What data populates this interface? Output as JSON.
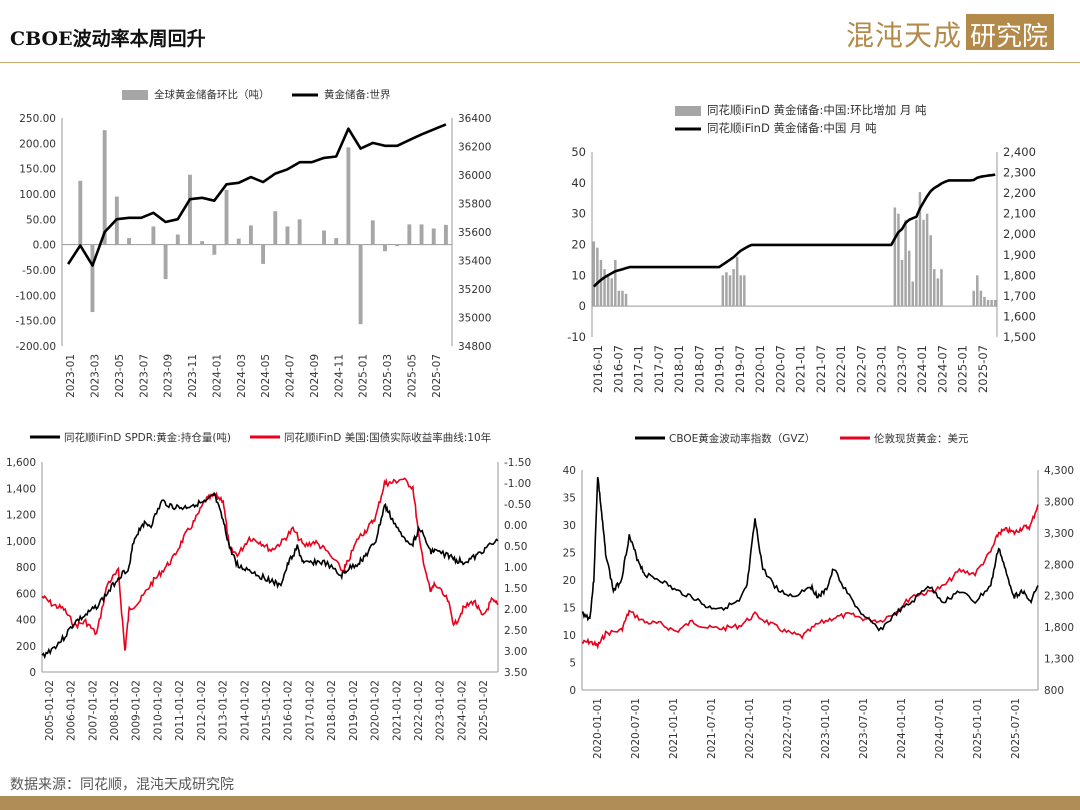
{
  "header": {
    "title": "CBOE波动率本周回升",
    "logo_text": "混沌天成",
    "logo_box_text": "研究院"
  },
  "footer": {
    "source": "数据来源：同花顺，混沌天成研究院"
  },
  "colors": {
    "bar": "#a6a6a6",
    "line_black": "#000000",
    "line_red": "#e8001c",
    "accent": "#b08d57"
  },
  "chart_data": [
    {
      "id": "c1",
      "type": "bar+line",
      "legend": {
        "bar": "全球黄金储备环比（吨）",
        "line": "黄金储备:世界"
      },
      "y_left": {
        "ticks": [
          "250.00",
          "200.00",
          "150.00",
          "100.00",
          "50.00",
          "0.00",
          "-50.00",
          "-100.00",
          "-150.00",
          "-200.00"
        ],
        "range": [
          -200,
          250
        ]
      },
      "y_right": {
        "ticks": [
          "36400",
          "36200",
          "36000",
          "35800",
          "35600",
          "35400",
          "35200",
          "35000",
          "34800"
        ],
        "range": [
          34800,
          36400
        ]
      },
      "x_ticks": [
        "2023-01",
        "2023-03",
        "2023-05",
        "2023-07",
        "2023-09",
        "2023-11",
        "2024-01",
        "2024-03",
        "2024-05",
        "2024-07",
        "2024-09",
        "2024-11",
        "2025-01",
        "2025-03",
        "2025-05",
        "2025-07"
      ],
      "bars": [
        0,
        126,
        -133,
        226,
        95,
        13,
        0,
        36,
        -68,
        20,
        138,
        7,
        -20,
        108,
        12,
        38,
        -38,
        66,
        36,
        50,
        0,
        28,
        13,
        192,
        -157,
        48,
        -13,
        -3,
        40,
        40,
        32,
        39
      ],
      "line": [
        35375,
        35505,
        35365,
        35600,
        35690,
        35700,
        35700,
        35735,
        35670,
        35690,
        35830,
        35840,
        35820,
        35935,
        35945,
        35985,
        35950,
        36010,
        36040,
        36090,
        36090,
        36120,
        36130,
        36325,
        36185,
        36225,
        36205,
        36205,
        36245,
        36285,
        36320,
        36355
      ]
    },
    {
      "id": "c2",
      "type": "bar+line",
      "legend": {
        "bar": "同花顺iFinD 黄金储备:中国:环比增加 月 吨",
        "line": "同花顺iFinD 黄金储备:中国 月 吨"
      },
      "y_left": {
        "ticks": [
          "50",
          "40",
          "30",
          "20",
          "10",
          "0",
          "-10"
        ],
        "range": [
          -10,
          50
        ]
      },
      "y_right": {
        "ticks": [
          "2,400",
          "2,300",
          "2,200",
          "2,100",
          "2,000",
          "1,900",
          "1,800",
          "1,700",
          "1,600",
          "1,500"
        ],
        "range": [
          1500,
          2400
        ]
      },
      "x_ticks": [
        "2016-01",
        "2016-07",
        "2017-01",
        "2017-07",
        "2018-01",
        "2018-07",
        "2019-01",
        "2019-07",
        "2020-01",
        "2020-07",
        "2021-01",
        "2021-07",
        "2022-01",
        "2022-07",
        "2023-01",
        "2023-07",
        "2024-01",
        "2024-07",
        "2025-01",
        "2025-07"
      ],
      "bars": [
        21,
        19,
        15,
        12,
        10,
        9,
        15,
        5,
        5,
        4,
        0,
        0,
        0,
        0,
        0,
        0,
        0,
        0,
        0,
        0,
        0,
        0,
        0,
        0,
        0,
        0,
        0,
        0,
        0,
        0,
        0,
        0,
        0,
        0,
        0,
        0,
        10,
        11,
        10,
        12,
        16,
        10,
        10,
        0,
        0,
        0,
        0,
        0,
        0,
        0,
        0,
        0,
        0,
        0,
        0,
        0,
        0,
        0,
        0,
        0,
        0,
        0,
        0,
        0,
        0,
        0,
        0,
        0,
        0,
        0,
        0,
        0,
        0,
        0,
        0,
        0,
        0,
        0,
        0,
        0,
        0,
        0,
        0,
        0,
        32,
        30,
        15,
        28,
        18,
        8,
        28,
        37,
        28,
        30,
        23,
        12,
        9,
        12,
        0,
        0,
        0,
        0,
        0,
        0,
        0,
        0,
        5,
        10,
        5,
        3,
        2,
        2,
        2
      ],
      "line": [
        1745,
        1762,
        1778,
        1790,
        1800,
        1810,
        1820,
        1825,
        1830,
        1835,
        1840,
        1840,
        1840,
        1840,
        1840,
        1840,
        1840,
        1840,
        1840,
        1840,
        1840,
        1840,
        1840,
        1840,
        1840,
        1840,
        1840,
        1840,
        1840,
        1840,
        1840,
        1840,
        1840,
        1840,
        1840,
        1840,
        1852,
        1864,
        1876,
        1888,
        1905,
        1920,
        1930,
        1940,
        1948,
        1948,
        1948,
        1948,
        1948,
        1948,
        1948,
        1948,
        1948,
        1948,
        1948,
        1948,
        1948,
        1948,
        1948,
        1948,
        1948,
        1948,
        1948,
        1948,
        1948,
        1948,
        1948,
        1948,
        1948,
        1948,
        1948,
        1948,
        1948,
        1948,
        1948,
        1948,
        1948,
        1948,
        1948,
        1948,
        1948,
        1948,
        1948,
        1948,
        1980,
        2010,
        2025,
        2055,
        2070,
        2078,
        2085,
        2125,
        2155,
        2185,
        2210,
        2225,
        2235,
        2247,
        2255,
        2262,
        2262,
        2262,
        2262,
        2262,
        2262,
        2262,
        2264,
        2275,
        2280,
        2283,
        2285,
        2287,
        2290
      ]
    },
    {
      "id": "c3",
      "type": "line",
      "legend": {
        "s1": "同花顺iFinD SPDR:黄金:持仓量(吨)",
        "s2": "同花顺iFinD 美国:国债实际收益率曲线:10年"
      },
      "y_left": {
        "ticks": [
          "1,600",
          "1,400",
          "1,200",
          "1,000",
          "800",
          "600",
          "400",
          "200",
          "0"
        ],
        "range": [
          0,
          1600
        ]
      },
      "y_right": {
        "ticks": [
          "-1.50",
          "-1.00",
          "-0.50",
          "0.00",
          "0.50",
          "1.00",
          "1.50",
          "2.00",
          "2.50",
          "3.00",
          "3.50"
        ],
        "range": [
          -1.5,
          3.5
        ],
        "inverted": true
      },
      "x_ticks": [
        "2005-01-02",
        "2006-01-02",
        "2007-01-02",
        "2008-01-02",
        "2009-01-02",
        "2010-01-02",
        "2011-01-02",
        "2012-01-02",
        "2013-01-02",
        "2014-01-02",
        "2015-01-02",
        "2016-01-02",
        "2017-01-02",
        "2018-01-02",
        "2019-01-02",
        "2020-01-02",
        "2021-01-02",
        "2022-01-02",
        "2023-01-02",
        "2024-01-02",
        "2025-01-02"
      ],
      "x_range": [
        2005.0,
        2025.9
      ],
      "s1": [
        [
          2005.0,
          120
        ],
        [
          2005.5,
          180
        ],
        [
          2006.0,
          260
        ],
        [
          2006.5,
          380
        ],
        [
          2007.0,
          430
        ],
        [
          2007.5,
          500
        ],
        [
          2008.0,
          600
        ],
        [
          2008.5,
          720
        ],
        [
          2009.0,
          800
        ],
        [
          2009.2,
          1000
        ],
        [
          2009.6,
          1130
        ],
        [
          2010.0,
          1120
        ],
        [
          2010.5,
          1300
        ],
        [
          2011.0,
          1260
        ],
        [
          2011.5,
          1250
        ],
        [
          2012.0,
          1280
        ],
        [
          2012.5,
          1290
        ],
        [
          2012.9,
          1350
        ],
        [
          2013.3,
          1150
        ],
        [
          2013.6,
          950
        ],
        [
          2014.0,
          800
        ],
        [
          2014.5,
          780
        ],
        [
          2015.0,
          730
        ],
        [
          2015.5,
          700
        ],
        [
          2015.9,
          650
        ],
        [
          2016.3,
          830
        ],
        [
          2016.7,
          950
        ],
        [
          2017.0,
          820
        ],
        [
          2017.5,
          840
        ],
        [
          2018.0,
          830
        ],
        [
          2018.7,
          730
        ],
        [
          2019.0,
          780
        ],
        [
          2019.5,
          830
        ],
        [
          2019.9,
          900
        ],
        [
          2020.3,
          1000
        ],
        [
          2020.7,
          1270
        ],
        [
          2021.0,
          1180
        ],
        [
          2021.5,
          1030
        ],
        [
          2022.0,
          980
        ],
        [
          2022.3,
          1100
        ],
        [
          2022.8,
          920
        ],
        [
          2023.0,
          920
        ],
        [
          2023.6,
          890
        ],
        [
          2024.0,
          850
        ],
        [
          2024.4,
          840
        ],
        [
          2024.9,
          880
        ],
        [
          2025.3,
          940
        ],
        [
          2025.9,
          1000
        ]
      ],
      "s2": [
        [
          2005.0,
          1.7
        ],
        [
          2005.5,
          1.9
        ],
        [
          2006.0,
          2.0
        ],
        [
          2006.5,
          2.4
        ],
        [
          2007.0,
          2.3
        ],
        [
          2007.5,
          2.6
        ],
        [
          2008.0,
          1.4
        ],
        [
          2008.5,
          1.1
        ],
        [
          2008.8,
          3.0
        ],
        [
          2009.0,
          2.0
        ],
        [
          2009.5,
          1.8
        ],
        [
          2010.0,
          1.4
        ],
        [
          2010.5,
          1.1
        ],
        [
          2011.0,
          0.8
        ],
        [
          2011.5,
          0.3
        ],
        [
          2012.0,
          -0.1
        ],
        [
          2012.5,
          -0.6
        ],
        [
          2012.9,
          -0.7
        ],
        [
          2013.3,
          -0.6
        ],
        [
          2013.6,
          0.6
        ],
        [
          2014.0,
          0.7
        ],
        [
          2014.5,
          0.3
        ],
        [
          2015.0,
          0.4
        ],
        [
          2015.5,
          0.6
        ],
        [
          2016.0,
          0.4
        ],
        [
          2016.5,
          0.1
        ],
        [
          2017.0,
          0.5
        ],
        [
          2017.5,
          0.4
        ],
        [
          2018.0,
          0.6
        ],
        [
          2018.8,
          1.1
        ],
        [
          2019.0,
          0.9
        ],
        [
          2019.5,
          0.3
        ],
        [
          2019.9,
          0.1
        ],
        [
          2020.3,
          -0.2
        ],
        [
          2020.7,
          -1.0
        ],
        [
          2021.0,
          -1.0
        ],
        [
          2021.5,
          -1.1
        ],
        [
          2022.0,
          -0.9
        ],
        [
          2022.3,
          0.4
        ],
        [
          2022.8,
          1.6
        ],
        [
          2023.0,
          1.4
        ],
        [
          2023.6,
          1.8
        ],
        [
          2023.9,
          2.4
        ],
        [
          2024.3,
          2.0
        ],
        [
          2024.8,
          1.8
        ],
        [
          2025.2,
          2.2
        ],
        [
          2025.6,
          1.8
        ],
        [
          2025.9,
          1.9
        ]
      ]
    },
    {
      "id": "c4",
      "type": "line",
      "legend": {
        "s1": "CBOE黄金波动率指数（GVZ）",
        "s2": "伦敦现货黄金：美元"
      },
      "y_left": {
        "ticks": [
          "40",
          "35",
          "30",
          "25",
          "20",
          "15",
          "10",
          "5",
          "0"
        ],
        "range": [
          0,
          40
        ]
      },
      "y_right": {
        "ticks": [
          "4,300",
          "3,800",
          "3,300",
          "2,800",
          "2,300",
          "1,800",
          "1,300",
          "800"
        ],
        "range": [
          800,
          4300
        ]
      },
      "x_ticks": [
        "2020-01-01",
        "2020-07-01",
        "2021-01-01",
        "2021-07-01",
        "2022-01-01",
        "2022-07-01",
        "2023-01-01",
        "2023-07-01",
        "2024-01-01",
        "2024-07-01",
        "2025-01-01",
        "2025-07-01"
      ],
      "x_range": [
        2020.0,
        2025.8
      ],
      "s1": [
        [
          2020.0,
          14
        ],
        [
          2020.1,
          13
        ],
        [
          2020.15,
          20
        ],
        [
          2020.2,
          39
        ],
        [
          2020.25,
          32
        ],
        [
          2020.3,
          25
        ],
        [
          2020.4,
          18
        ],
        [
          2020.5,
          20
        ],
        [
          2020.6,
          28
        ],
        [
          2020.7,
          24
        ],
        [
          2020.8,
          21
        ],
        [
          2021.0,
          20
        ],
        [
          2021.2,
          18
        ],
        [
          2021.4,
          17
        ],
        [
          2021.6,
          15
        ],
        [
          2021.8,
          15
        ],
        [
          2022.0,
          16
        ],
        [
          2022.1,
          19
        ],
        [
          2022.2,
          31
        ],
        [
          2022.3,
          22
        ],
        [
          2022.5,
          18
        ],
        [
          2022.7,
          17
        ],
        [
          2022.9,
          19
        ],
        [
          2023.0,
          17
        ],
        [
          2023.1,
          18
        ],
        [
          2023.2,
          22
        ],
        [
          2023.4,
          17
        ],
        [
          2023.6,
          13
        ],
        [
          2023.8,
          11
        ],
        [
          2024.0,
          14
        ],
        [
          2024.2,
          16
        ],
        [
          2024.4,
          19
        ],
        [
          2024.6,
          16
        ],
        [
          2024.8,
          18
        ],
        [
          2025.0,
          16
        ],
        [
          2025.2,
          19
        ],
        [
          2025.3,
          26
        ],
        [
          2025.4,
          21
        ],
        [
          2025.5,
          17
        ],
        [
          2025.6,
          18
        ],
        [
          2025.7,
          16
        ],
        [
          2025.8,
          19
        ]
      ],
      "s2": [
        [
          2020.0,
          1550
        ],
        [
          2020.1,
          1570
        ],
        [
          2020.2,
          1500
        ],
        [
          2020.3,
          1700
        ],
        [
          2020.5,
          1750
        ],
        [
          2020.6,
          2050
        ],
        [
          2020.8,
          1880
        ],
        [
          2021.0,
          1850
        ],
        [
          2021.2,
          1730
        ],
        [
          2021.4,
          1890
        ],
        [
          2021.6,
          1790
        ],
        [
          2021.8,
          1780
        ],
        [
          2022.0,
          1820
        ],
        [
          2022.2,
          2000
        ],
        [
          2022.4,
          1850
        ],
        [
          2022.6,
          1720
        ],
        [
          2022.8,
          1650
        ],
        [
          2023.0,
          1850
        ],
        [
          2023.2,
          1950
        ],
        [
          2023.4,
          2000
        ],
        [
          2023.6,
          1930
        ],
        [
          2023.8,
          1900
        ],
        [
          2024.0,
          2050
        ],
        [
          2024.2,
          2300
        ],
        [
          2024.4,
          2350
        ],
        [
          2024.6,
          2450
        ],
        [
          2024.8,
          2700
        ],
        [
          2025.0,
          2650
        ],
        [
          2025.2,
          3000
        ],
        [
          2025.3,
          3300
        ],
        [
          2025.4,
          3350
        ],
        [
          2025.5,
          3300
        ],
        [
          2025.6,
          3380
        ],
        [
          2025.7,
          3400
        ],
        [
          2025.8,
          3750
        ]
      ]
    }
  ]
}
